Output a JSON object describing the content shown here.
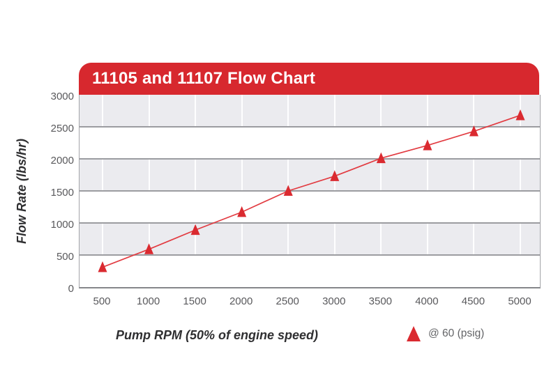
{
  "header": {
    "title": "11105 and 11107 Flow Chart"
  },
  "colors": {
    "banner_red": "#d7282e",
    "marker_red": "#da2a30",
    "line_red": "#e23b41",
    "band_gray": "#ebebef",
    "grid_gray": "#9b9ca0",
    "tick_text": "#59595c",
    "axis_text": "#2f2f31",
    "legend_text": "#636467"
  },
  "chart_data": {
    "type": "line",
    "title": "11105 and 11107 Flow Chart",
    "xlabel": "Pump RPM (50% of engine speed)",
    "ylabel": "Flow Rate (lbs/hr)",
    "x": [
      500,
      1000,
      1500,
      2000,
      2500,
      3000,
      3500,
      4000,
      4500,
      5000
    ],
    "series": [
      {
        "name": "@ 60 (psig)",
        "marker": "triangle",
        "values": [
          310,
          590,
          890,
          1170,
          1500,
          1730,
          2010,
          2210,
          2430,
          2680
        ]
      }
    ],
    "xticks": [
      500,
      1000,
      1500,
      2000,
      2500,
      3000,
      3500,
      4000,
      4500,
      5000
    ],
    "yticks": [
      0,
      500,
      1000,
      1500,
      2000,
      2500,
      3000
    ],
    "ylim": [
      0,
      3000
    ],
    "grid": "alternating horizontal gray/white bands every 500; white vertical gridlines at each x tick",
    "legend_position": "bottom-right"
  },
  "legend": {
    "label": "@ 60 (psig)"
  }
}
